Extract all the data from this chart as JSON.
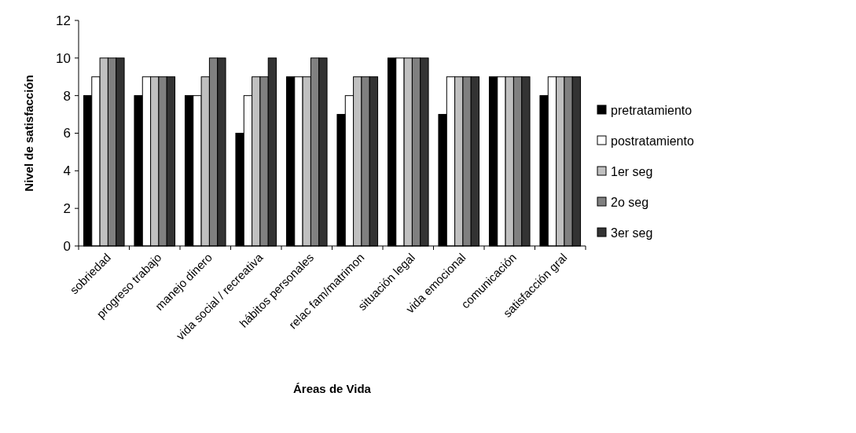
{
  "chart_data": {
    "type": "bar",
    "xlabel": "Áreas de Vida",
    "ylabel": "Nivel de satisfacción",
    "categories": [
      "sobriedad",
      "progreso trabajo",
      "manejo dinero",
      "vida social / recreativa",
      "hábitos personales",
      "relac fam/matrimon",
      "situación legal",
      "vida emocional",
      "comunicación",
      "satisfacción gral"
    ],
    "series": [
      {
        "name": "pretratamiento",
        "color": "#000000",
        "values": [
          8,
          8,
          8,
          6,
          9,
          7,
          10,
          7,
          9,
          8
        ]
      },
      {
        "name": "postratamiento",
        "color": "#ffffff",
        "values": [
          9,
          9,
          8,
          8,
          9,
          8,
          10,
          9,
          9,
          9
        ]
      },
      {
        "name": "1er seg",
        "color": "#c0c0c0",
        "values": [
          10,
          9,
          9,
          9,
          9,
          9,
          10,
          9,
          9,
          9
        ]
      },
      {
        "name": "2o seg",
        "color": "#808080",
        "values": [
          10,
          9,
          10,
          9,
          10,
          9,
          10,
          9,
          9,
          9
        ]
      },
      {
        "name": "3er seg",
        "color": "#333333",
        "values": [
          10,
          9,
          10,
          10,
          10,
          9,
          10,
          9,
          9,
          9
        ]
      }
    ],
    "ylim": [
      0,
      12
    ],
    "yticks": [
      0,
      2,
      4,
      6,
      8,
      10,
      12
    ],
    "grid": false,
    "legend": "right"
  }
}
